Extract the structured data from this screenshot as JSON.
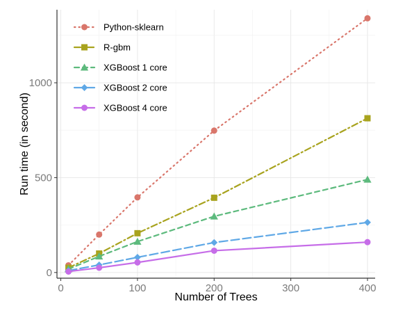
{
  "chart_data": {
    "type": "line",
    "title": "",
    "xlabel": "Number of Trees",
    "ylabel": "Run time (in second)",
    "xlim": [
      -5,
      410
    ],
    "ylim": [
      -30,
      1385
    ],
    "x_ticks": [
      0,
      100,
      200,
      300,
      400
    ],
    "y_ticks": [
      0,
      500,
      1000
    ],
    "grid": true,
    "legend_position": "top-left",
    "x": [
      10,
      50,
      100,
      200,
      400
    ],
    "series": [
      {
        "name": "Python-sklearn",
        "values": [
          38,
          200,
          396,
          748,
          1340
        ],
        "color": "#d9766b",
        "marker": "circle",
        "dash": "dotted"
      },
      {
        "name": "R-gbm",
        "values": [
          25,
          100,
          207,
          394,
          813
        ],
        "color": "#a8a31e",
        "marker": "square",
        "dash": "dashdot"
      },
      {
        "name": "XGBoost 1 core",
        "values": [
          18,
          85,
          163,
          296,
          490
        ],
        "color": "#5dba7d",
        "marker": "triangle",
        "dash": "dashed"
      },
      {
        "name": "XGBoost 2 core",
        "values": [
          10,
          40,
          80,
          158,
          264
        ],
        "color": "#5fa8e6",
        "marker": "diamond",
        "dash": "longdash"
      },
      {
        "name": "XGBoost 4 core",
        "values": [
          5,
          25,
          53,
          115,
          160
        ],
        "color": "#c66de8",
        "marker": "circle",
        "dash": "solid"
      }
    ]
  }
}
